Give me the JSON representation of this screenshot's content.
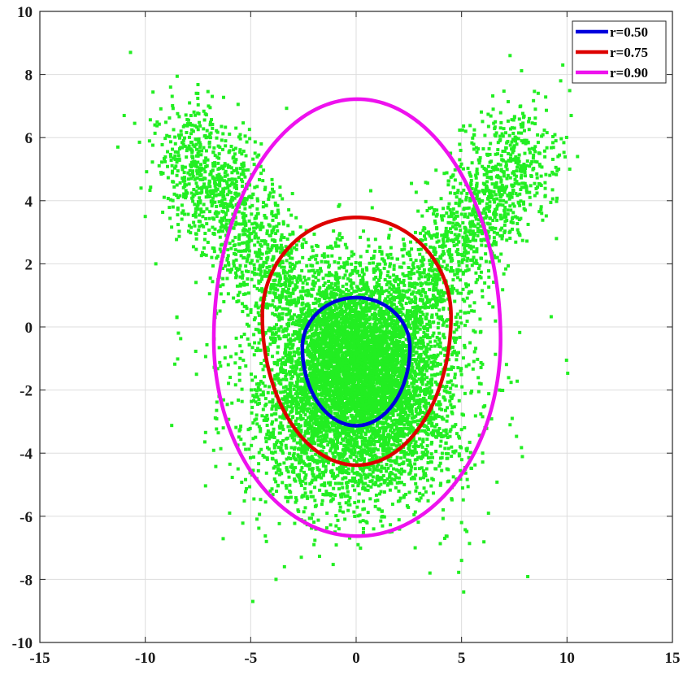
{
  "chart_data": {
    "type": "scatter",
    "title": "",
    "xlabel": "",
    "ylabel": "",
    "xlim": [
      -15,
      15
    ],
    "ylim": [
      -10,
      10
    ],
    "x_ticks": [
      -15,
      -10,
      -5,
      0,
      5,
      10,
      15
    ],
    "y_ticks": [
      -10,
      -8,
      -6,
      -4,
      -2,
      0,
      2,
      4,
      6,
      8,
      10
    ],
    "x_tick_labels": [
      "-15",
      "-10",
      "-5",
      "0",
      "5",
      "10",
      "15"
    ],
    "y_tick_labels": [
      "-10",
      "-8",
      "-6",
      "-4",
      "-2",
      "0",
      "2",
      "4",
      "6",
      "8",
      "10"
    ],
    "grid": true,
    "legend_position": "top-right",
    "scatter_color": "#22ee22",
    "scatter_samples": [
      [
        -11.3,
        5.7
      ],
      [
        -10.7,
        8.7
      ],
      [
        -11.0,
        6.7
      ],
      [
        -10.2,
        4.4
      ],
      [
        -8.8,
        7.6
      ],
      [
        -7.9,
        7.1
      ],
      [
        -7.0,
        7.0
      ],
      [
        -5.7,
        6.3
      ],
      [
        -6.0,
        -5.9
      ],
      [
        -4.9,
        -8.7
      ],
      [
        -3.8,
        -8.0
      ],
      [
        -3.4,
        -7.6
      ],
      [
        -2.6,
        -7.3
      ],
      [
        -6.5,
        -2.2
      ],
      [
        -6.3,
        -3.2
      ],
      [
        -5.6,
        -4.5
      ],
      [
        -8.5,
        0.3
      ],
      [
        -9.5,
        2.0
      ],
      [
        -10.0,
        3.5
      ],
      [
        -8.5,
        4.8
      ],
      [
        -7.5,
        5.5
      ],
      [
        -6.8,
        2.5
      ],
      [
        -5.5,
        -1.0
      ],
      [
        5.0,
        -7.4
      ],
      [
        5.1,
        -8.4
      ],
      [
        5.0,
        -6.2
      ],
      [
        7.3,
        8.6
      ],
      [
        9.8,
        8.3
      ],
      [
        10.2,
        6.7
      ],
      [
        9.7,
        7.8
      ],
      [
        8.5,
        6.9
      ],
      [
        9.3,
        4.9
      ],
      [
        10.5,
        5.4
      ],
      [
        9.5,
        2.8
      ],
      [
        8.8,
        3.6
      ],
      [
        7.4,
        -2.9
      ],
      [
        7.3,
        -3.1
      ],
      [
        6.8,
        -2.0
      ],
      [
        6.0,
        -4.0
      ],
      [
        4.2,
        -6.7
      ],
      [
        2.8,
        -7.0
      ],
      [
        3.5,
        -7.8
      ],
      [
        1.6,
        -6.5
      ],
      [
        -1.0,
        -6.5
      ],
      [
        -2.0,
        -6.9
      ],
      [
        6.6,
        6.5
      ],
      [
        7.8,
        7.0
      ],
      [
        6.5,
        6.9
      ],
      [
        8.0,
        5.5
      ],
      [
        5.5,
        5.2
      ],
      [
        -4.5,
        5.8
      ],
      [
        -3.0,
        3.0
      ]
    ],
    "series": [
      {
        "name": "r=0.50",
        "color": "#0000dd",
        "x": [
          0.05
        ],
        "y": [
          0.93
        ]
      },
      {
        "name": "r=0.75",
        "color": "#dd0000",
        "x": [
          0.05
        ],
        "y": [
          3.47
        ]
      },
      {
        "name": "r=0.90",
        "color": "#ee11ee",
        "x": [
          0.05
        ],
        "y": [
          7.22
        ]
      }
    ],
    "contours": [
      {
        "name": "r=0.50",
        "top": 0.93,
        "bottom": -3.13,
        "left": -2.55,
        "right": 2.55,
        "y_at_max_width": -0.65
      },
      {
        "name": "r=0.75",
        "top": 3.47,
        "bottom": -4.38,
        "left": -4.45,
        "right": 4.5,
        "y_at_max_width": 0.35
      },
      {
        "name": "r=0.90",
        "top": 7.22,
        "bottom": -6.63,
        "left": -6.75,
        "right": 6.85,
        "y_at_max_width": -0.4
      }
    ]
  }
}
